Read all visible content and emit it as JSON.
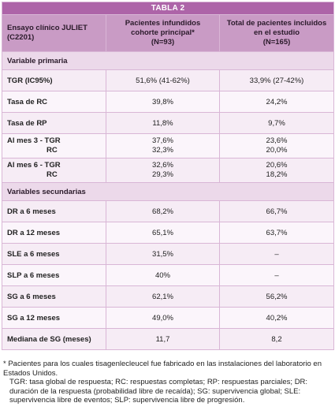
{
  "table": {
    "title": "TABLA 2",
    "headers": [
      [
        "Ensayo clínico JULIET",
        "(C2201)"
      ],
      [
        "Pacientes infundidos",
        "cohorte principal*",
        "(N=93)"
      ],
      [
        "Total de pacientes incluidos",
        "en el estudio",
        "(N=165)"
      ]
    ],
    "section_primary": "Variable primaria",
    "section_secondary": "Variables secundarias",
    "rows_primary": [
      {
        "label": "TGR (IC95%)",
        "v1": "51,6% (41-62%)",
        "v2": "33,9% (27-42%)"
      },
      {
        "label": "Tasa de RC",
        "v1": "39,8%",
        "v2": "24,2%"
      },
      {
        "label": "Tasa de RP",
        "v1": "11,8%",
        "v2": "9,7%"
      },
      {
        "label": "Al mes 3 - TGR",
        "label2": "RC",
        "v1": "37,6%",
        "v1b": "32,3%",
        "v2": "23,6%",
        "v2b": "20,0%"
      },
      {
        "label": "Al mes 6 - TGR",
        "label2": "RC",
        "v1": "32,6%",
        "v1b": "29,3%",
        "v2": "20,6%",
        "v2b": "18,2%"
      }
    ],
    "rows_secondary": [
      {
        "label": "DR a 6 meses",
        "v1": "68,2%",
        "v2": "66,7%"
      },
      {
        "label": "DR a 12 meses",
        "v1": "65,1%",
        "v2": "63,7%"
      },
      {
        "label": "SLE a 6 meses",
        "v1": "31,5%",
        "v2": "–"
      },
      {
        "label": "SLP a 6 meses",
        "v1": "40%",
        "v2": "–"
      },
      {
        "label": "SG a 6 meses",
        "v1": "62,1%",
        "v2": "56,2%"
      },
      {
        "label": "SG a 12 meses",
        "v1": "49,0%",
        "v2": "40,2%"
      },
      {
        "label": "Mediana de SG (meses)",
        "v1": "11,7",
        "v2": "8,2"
      }
    ]
  },
  "footnotes": [
    "* Pacientes para los cuales tisagenlecleucel fue fabricado en las instalaciones del laboratorio en Estados Unidos.",
    "TGR: tasa global de respuesta; RC: respuestas completas; RP: respuestas parciales; DR: duración de la respuesta (probabilidad libre de recaída); SG: supervivencia global; SLE: supervivencia libre de eventos; SLP: supervivencia libre de progresión."
  ]
}
